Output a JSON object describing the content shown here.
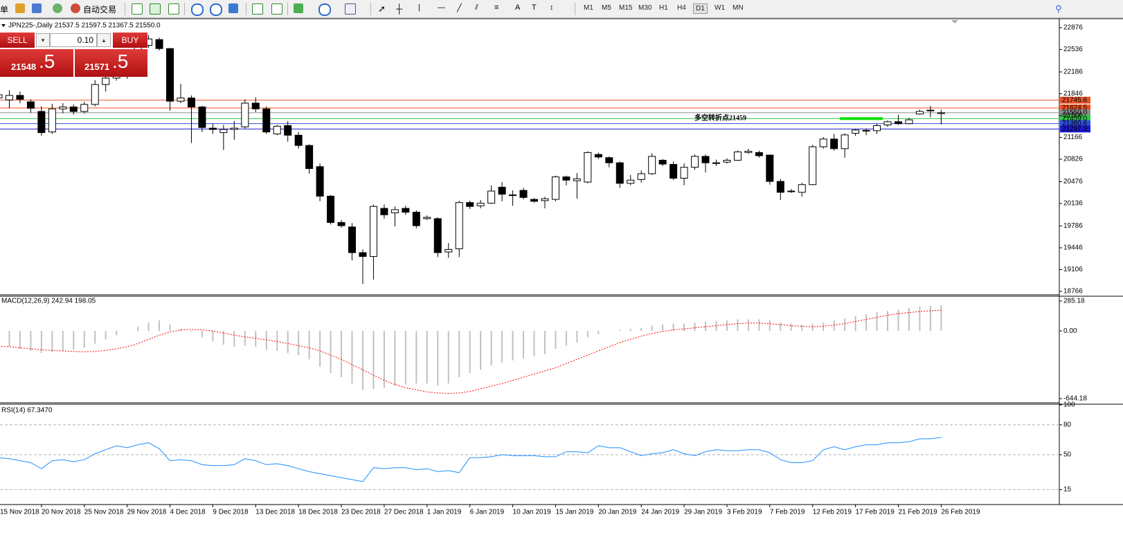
{
  "toolbar": {
    "menu_fragment": "单",
    "auto_trade": "自动交易",
    "timeframes": [
      "M1",
      "M5",
      "M15",
      "M30",
      "H1",
      "H4",
      "D1",
      "W1",
      "MN"
    ]
  },
  "trade_panel": {
    "sell": "SELL",
    "buy": "BUY",
    "lots": "0.10",
    "bid_big": "21548",
    "bid_small": ".5",
    "ask_big": "21571",
    "ask_small": ".5"
  },
  "chart_data": [
    {
      "type": "candlestick",
      "title": "JPN225-,Daily  21537.5 21597.5 21367.5 21550.0",
      "categories": [
        "15 Nov 2018",
        null,
        null,
        null,
        "20 Nov 2018",
        null,
        null,
        null,
        "25 Nov 2018",
        null,
        null,
        null,
        "29 Nov 2018",
        null,
        null,
        null,
        "4 Dec 2018",
        null,
        null,
        null,
        "9 Dec 2018",
        null,
        null,
        null,
        "13 Dec 2018",
        null,
        null,
        null,
        "18 Dec 2018",
        null,
        null,
        null,
        "23 Dec 2018",
        null,
        null,
        null,
        "27 Dec 2018",
        null,
        null,
        null,
        "1 Jan 2019",
        null,
        null,
        null,
        "6 Jan 2019",
        null,
        null,
        null,
        "10 Jan 2019",
        null,
        null,
        null,
        "15 Jan 2019",
        null,
        null,
        null,
        "20 Jan 2019",
        null,
        null,
        null,
        "24 Jan 2019",
        null,
        null,
        null,
        "29 Jan 2019",
        null,
        null,
        null,
        "3 Feb 2019",
        null,
        null,
        null,
        "7 Feb 2019",
        null,
        null,
        null,
        "12 Feb 2019",
        null,
        null,
        null,
        "17 Feb 2019",
        null,
        null,
        null,
        "21 Feb 2019",
        null,
        null,
        null,
        "26 Feb 2019"
      ],
      "open": [
        21780,
        21750,
        21820,
        21720,
        21570,
        21250,
        21610,
        21640,
        21570,
        21680,
        21990,
        22090,
        22120,
        22300,
        22600,
        22690,
        22550,
        21730,
        21780,
        21640,
        21310,
        21240,
        21290,
        21330,
        21700,
        21610,
        21220,
        21350,
        21200,
        21040,
        20710,
        20250,
        19840,
        19770,
        19370,
        19310,
        20060,
        19990,
        20060,
        20000,
        19900,
        19900,
        19380,
        19430,
        20150,
        20100,
        20140,
        20390,
        20260,
        20340,
        20200,
        20180,
        20200,
        20550,
        20490,
        20470,
        20900,
        20850,
        20770,
        20450,
        20510,
        20600,
        20810,
        20745,
        20530,
        20700,
        20870,
        20770,
        20780,
        20810,
        20930,
        20930,
        20890,
        20480,
        20330,
        20310,
        20430,
        21020,
        21140,
        20990,
        21230,
        21270,
        21270,
        21360,
        21410,
        21380,
        21530,
        21590,
        21537.5
      ],
      "high": [
        21880,
        21900,
        21880,
        21760,
        21650,
        21690,
        21700,
        21680,
        21720,
        22060,
        22150,
        22200,
        22350,
        22650,
        22760,
        22720,
        22560,
        22000,
        21820,
        21660,
        21380,
        21360,
        21420,
        21760,
        21790,
        21650,
        21360,
        21420,
        21250,
        21060,
        20760,
        20270,
        19880,
        19830,
        19420,
        20120,
        20120,
        20090,
        20100,
        20030,
        19950,
        19920,
        19520,
        20180,
        20180,
        20190,
        20420,
        20470,
        20340,
        20380,
        20220,
        20240,
        20570,
        20570,
        20610,
        20950,
        20930,
        20870,
        20790,
        20580,
        20650,
        20920,
        20830,
        20790,
        20760,
        20900,
        20900,
        20820,
        20840,
        20960,
        20990,
        20960,
        20900,
        20520,
        20360,
        20460,
        21050,
        21170,
        21220,
        21230,
        21300,
        21300,
        21380,
        21430,
        21520,
        21470,
        21600,
        21660,
        21597.5
      ],
      "low": [
        21690,
        21620,
        21700,
        21550,
        21190,
        21220,
        21540,
        21520,
        21540,
        21650,
        21880,
        22050,
        22080,
        22280,
        22560,
        22520,
        21580,
        21700,
        21080,
        21250,
        21220,
        20970,
        21130,
        21300,
        21560,
        21220,
        21200,
        21100,
        20990,
        20600,
        20170,
        19810,
        19760,
        19250,
        18880,
        18950,
        19900,
        19780,
        19960,
        19750,
        19880,
        19300,
        19290,
        19300,
        20050,
        20060,
        20130,
        20170,
        20100,
        20200,
        20150,
        20060,
        20170,
        20420,
        20210,
        20450,
        20830,
        20700,
        20380,
        20420,
        20460,
        20580,
        20720,
        20500,
        20420,
        20660,
        20620,
        20720,
        20760,
        20800,
        20910,
        20850,
        20430,
        20190,
        20300,
        20240,
        20420,
        20990,
        20960,
        20850,
        21190,
        21200,
        21220,
        21330,
        21360,
        21370,
        21520,
        21480,
        21367.5
      ],
      "close": [
        21830,
        21820,
        21760,
        21620,
        21240,
        21610,
        21640,
        21570,
        21680,
        21990,
        22090,
        22120,
        22300,
        22600,
        22700,
        22550,
        21730,
        21780,
        21640,
        21320,
        21290,
        21290,
        21310,
        21700,
        21610,
        21250,
        21340,
        21200,
        21040,
        20680,
        20250,
        19840,
        19790,
        19370,
        19310,
        20090,
        19960,
        20040,
        20000,
        19790,
        19920,
        19370,
        19420,
        20150,
        20090,
        20140,
        20330,
        20280,
        20270,
        20230,
        20170,
        20210,
        20550,
        20500,
        20520,
        20930,
        20860,
        20770,
        20450,
        20500,
        20600,
        20870,
        20750,
        20530,
        20700,
        20870,
        20770,
        20760,
        20810,
        20940,
        20950,
        20880,
        20480,
        20310,
        20320,
        20430,
        21020,
        21140,
        20990,
        21205,
        21280,
        21275,
        21350,
        21410,
        21380,
        21440,
        21570,
        21580,
        21550
      ],
      "up_color": "#ffffff",
      "down_color": "#000000",
      "ylim": [
        18723,
        23005
      ],
      "yticks": [
        22876,
        22536,
        22186,
        21846,
        21506,
        21166,
        20826,
        20476,
        20136,
        19786,
        19446,
        19106,
        18766
      ],
      "levels": [
        {
          "value": 21745.6,
          "color": "#e8542a"
        },
        {
          "value": 21624.5,
          "color": "#f0501e"
        },
        {
          "value": 21550,
          "label": "21550.0",
          "color": "#8c8c8c"
        },
        {
          "value": 21459,
          "label": "21459.0",
          "color": "#2ecc40"
        },
        {
          "value": 21380.6,
          "color": "#2f4fe0"
        },
        {
          "value": 21297.3,
          "color": "#1a1acd"
        }
      ],
      "annotation": {
        "text": "多空转折点21459",
        "color": "#33dd33"
      },
      "marker": {
        "value": 21459,
        "color": "#00e000"
      }
    },
    {
      "type": "macd",
      "title": "MACD(12,26,9) 242.94 198.05",
      "ylim": [
        -677,
        324
      ],
      "yticks": [
        285.18,
        {
          "value": 0,
          "label": "0.00"
        },
        -644.18
      ],
      "series": [
        {
          "style": "histogram",
          "color": "#c0c0c0",
          "values": [
            -140,
            -150,
            -170,
            -190,
            -210,
            -200,
            -190,
            -180,
            -160,
            -120,
            -80,
            -40,
            0,
            40,
            80,
            100,
            60,
            20,
            -10,
            -60,
            -100,
            -130,
            -150,
            -140,
            -150,
            -180,
            -190,
            -210,
            -230,
            -270,
            -340,
            -400,
            -440,
            -500,
            -560,
            -550,
            -540,
            -520,
            -510,
            -500,
            -500,
            -520,
            -500,
            -440,
            -400,
            -370,
            -330,
            -300,
            -280,
            -260,
            -240,
            -220,
            -170,
            -140,
            -110,
            -60,
            -30,
            0,
            10,
            20,
            30,
            50,
            60,
            70,
            70,
            80,
            90,
            95,
            100,
            110,
            110,
            110,
            100,
            80,
            70,
            60,
            70,
            80,
            100,
            120,
            140,
            160,
            180,
            190,
            200,
            220,
            230,
            240,
            242.94
          ]
        },
        {
          "style": "dotted",
          "color": "#ff0000",
          "values": [
            -145,
            -150,
            -160,
            -170,
            -180,
            -185,
            -190,
            -195,
            -198,
            -195,
            -185,
            -170,
            -150,
            -120,
            -80,
            -40,
            -10,
            10,
            15,
            10,
            0,
            -20,
            -40,
            -55,
            -70,
            -85,
            -100,
            -120,
            -140,
            -160,
            -190,
            -230,
            -270,
            -320,
            -370,
            -420,
            -470,
            -510,
            -540,
            -560,
            -580,
            -590,
            -595,
            -590,
            -575,
            -550,
            -525,
            -500,
            -470,
            -440,
            -410,
            -380,
            -350,
            -310,
            -270,
            -230,
            -190,
            -150,
            -110,
            -80,
            -50,
            -25,
            -5,
            10,
            20,
            30,
            40,
            50,
            60,
            70,
            75,
            75,
            70,
            60,
            50,
            45,
            40,
            45,
            55,
            70,
            90,
            110,
            130,
            150,
            165,
            175,
            185,
            192,
            198.05
          ]
        }
      ]
    },
    {
      "type": "rsi",
      "title": "RSI(14) 67.3470",
      "ylim": [
        0,
        100
      ],
      "yticks": [
        100,
        80,
        50,
        15
      ],
      "levels": [
        80,
        50,
        15
      ],
      "series": [
        {
          "color": "#1e90ff",
          "values": [
            47,
            46,
            44,
            42,
            36,
            44,
            45,
            43,
            45,
            51,
            55,
            59,
            57,
            60,
            62,
            56,
            44,
            45,
            44,
            40,
            39,
            39,
            40,
            46,
            44,
            40,
            41,
            39,
            36,
            33,
            31,
            29,
            27,
            25,
            23,
            37,
            36,
            37,
            37,
            35,
            36,
            33,
            34,
            32,
            47,
            47,
            48,
            50,
            49,
            49,
            49,
            48,
            48,
            53,
            53,
            52,
            59,
            57,
            57,
            53,
            49,
            51,
            52,
            55,
            51,
            49,
            53,
            55,
            54,
            54,
            55,
            55,
            52,
            45,
            42,
            42,
            44,
            55,
            58,
            55,
            58,
            60,
            60,
            62,
            62,
            63,
            66,
            66,
            67.347
          ]
        }
      ]
    }
  ]
}
